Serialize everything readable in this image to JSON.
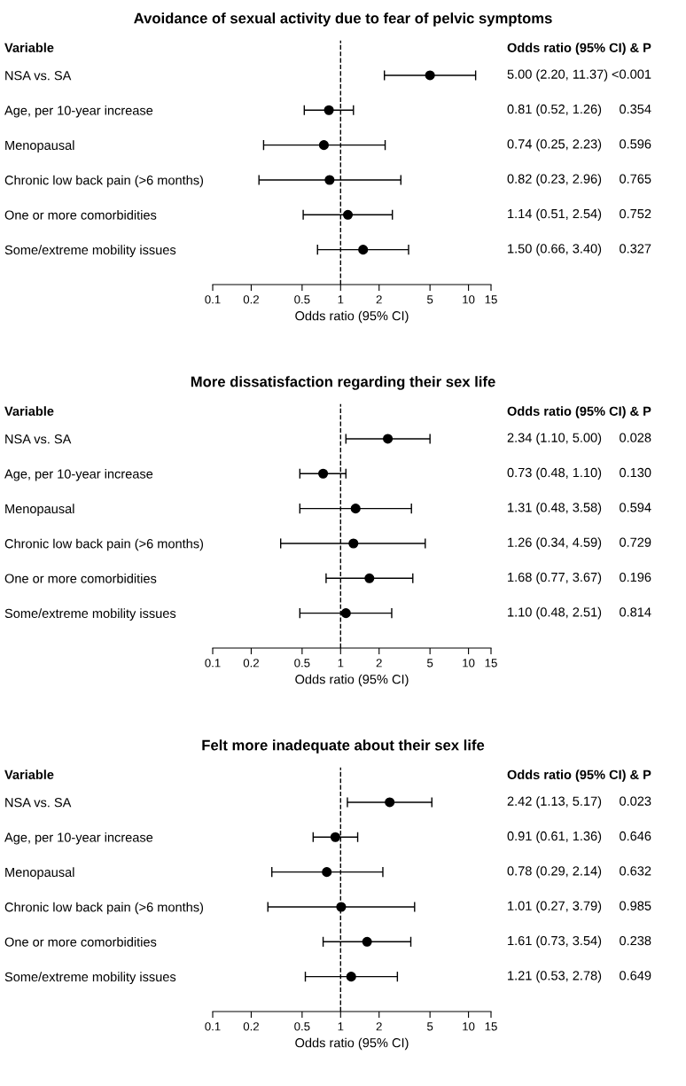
{
  "chart_data": [
    {
      "type": "scatter",
      "title": "Avoidance of sexual activity due to fear of pelvic symptoms",
      "xlabel": "Odds ratio (95% CI)",
      "categories": [
        "NSA vs. SA",
        "Age, per 10-year increase",
        "Menopausal",
        "Chronic low back pain (>6 months)",
        "One or more comorbidities",
        "Some/extreme mobility issues"
      ],
      "series": [
        {
          "color": "#000000",
          "values": [
            5.0,
            0.81,
            0.74,
            0.82,
            1.14,
            1.5
          ],
          "errors": [
            [
              2.2,
              11.37
            ],
            [
              0.52,
              1.26
            ],
            [
              0.25,
              2.23
            ],
            [
              0.23,
              2.96
            ],
            [
              0.51,
              2.54
            ],
            [
              0.66,
              3.4
            ]
          ]
        }
      ],
      "annotations": [
        "Variable",
        "Odds ratio (95% CI) & P",
        "5.00 (2.20, 11.37)",
        "<0.001",
        "0.81 (0.52, 1.26)",
        "0.354",
        "0.74 (0.25, 2.23)",
        "0.596",
        "0.82 (0.23, 2.96)",
        "0.765",
        "1.14 (0.51, 2.54)",
        "0.752",
        "1.50 (0.66, 3.40)",
        "0.327"
      ],
      "orientation": "horizontal",
      "log": "x",
      "xlim": [
        0.1,
        15
      ],
      "xticks": [
        0.1,
        0.2,
        0.5,
        1,
        2,
        5,
        10,
        15
      ],
      "ref_lines": [
        {
          "axis": "x",
          "value": 1,
          "line_style": "dashed",
          "color": "#000000"
        }
      ],
      "marker": "circle",
      "grid": false,
      "legend": false
    },
    {
      "type": "scatter",
      "title": "More dissatisfaction regarding their sex life",
      "xlabel": "Odds ratio (95% CI)",
      "categories": [
        "NSA vs. SA",
        "Age, per 10-year increase",
        "Menopausal",
        "Chronic low back pain (>6 months)",
        "One or more comorbidities",
        "Some/extreme mobility issues"
      ],
      "series": [
        {
          "color": "#000000",
          "values": [
            2.34,
            0.73,
            1.31,
            1.26,
            1.68,
            1.1
          ],
          "errors": [
            [
              1.1,
              5.0
            ],
            [
              0.48,
              1.1
            ],
            [
              0.48,
              3.58
            ],
            [
              0.34,
              4.59
            ],
            [
              0.77,
              3.67
            ],
            [
              0.48,
              2.51
            ]
          ]
        }
      ],
      "annotations": [
        "Variable",
        "Odds ratio (95% CI) & P",
        "2.34 (1.10, 5.00)",
        "0.028",
        "0.73 (0.48, 1.10)",
        "0.130",
        "1.31 (0.48, 3.58)",
        "0.594",
        "1.26 (0.34, 4.59)",
        "0.729",
        "1.68 (0.77, 3.67)",
        "0.196",
        "1.10 (0.48, 2.51)",
        "0.814"
      ],
      "orientation": "horizontal",
      "log": "x",
      "xlim": [
        0.1,
        15
      ],
      "xticks": [
        0.1,
        0.2,
        0.5,
        1,
        2,
        5,
        10,
        15
      ],
      "ref_lines": [
        {
          "axis": "x",
          "value": 1,
          "line_style": "dashed",
          "color": "#000000"
        }
      ],
      "marker": "circle",
      "grid": false,
      "legend": false
    },
    {
      "type": "scatter",
      "title": "Felt more inadequate about their sex life",
      "xlabel": "Odds ratio (95% CI)",
      "categories": [
        "NSA vs. SA",
        "Age, per 10-year increase",
        "Menopausal",
        "Chronic low back pain (>6 months)",
        "One or more comorbidities",
        "Some/extreme mobility issues"
      ],
      "series": [
        {
          "color": "#000000",
          "values": [
            2.42,
            0.91,
            0.78,
            1.01,
            1.61,
            1.21
          ],
          "errors": [
            [
              1.13,
              5.17
            ],
            [
              0.61,
              1.36
            ],
            [
              0.29,
              2.14
            ],
            [
              0.27,
              3.79
            ],
            [
              0.73,
              3.54
            ],
            [
              0.53,
              2.78
            ]
          ]
        }
      ],
      "annotations": [
        "Variable",
        "Odds ratio (95% CI) & P",
        "2.42 (1.13, 5.17)",
        "0.023",
        "0.91 (0.61, 1.36)",
        "0.646",
        "0.78 (0.29, 2.14)",
        "0.632",
        "1.01 (0.27, 3.79)",
        "0.985",
        "1.61 (0.73, 3.54)",
        "0.238",
        "1.21 (0.53, 2.78)",
        "0.649"
      ],
      "orientation": "horizontal",
      "log": "x",
      "xlim": [
        0.1,
        15
      ],
      "xticks": [
        0.1,
        0.2,
        0.5,
        1,
        2,
        5,
        10,
        15
      ],
      "ref_lines": [
        {
          "axis": "x",
          "value": 1,
          "line_style": "dashed",
          "color": "#000000"
        }
      ],
      "marker": "circle",
      "grid": false,
      "legend": false
    }
  ]
}
